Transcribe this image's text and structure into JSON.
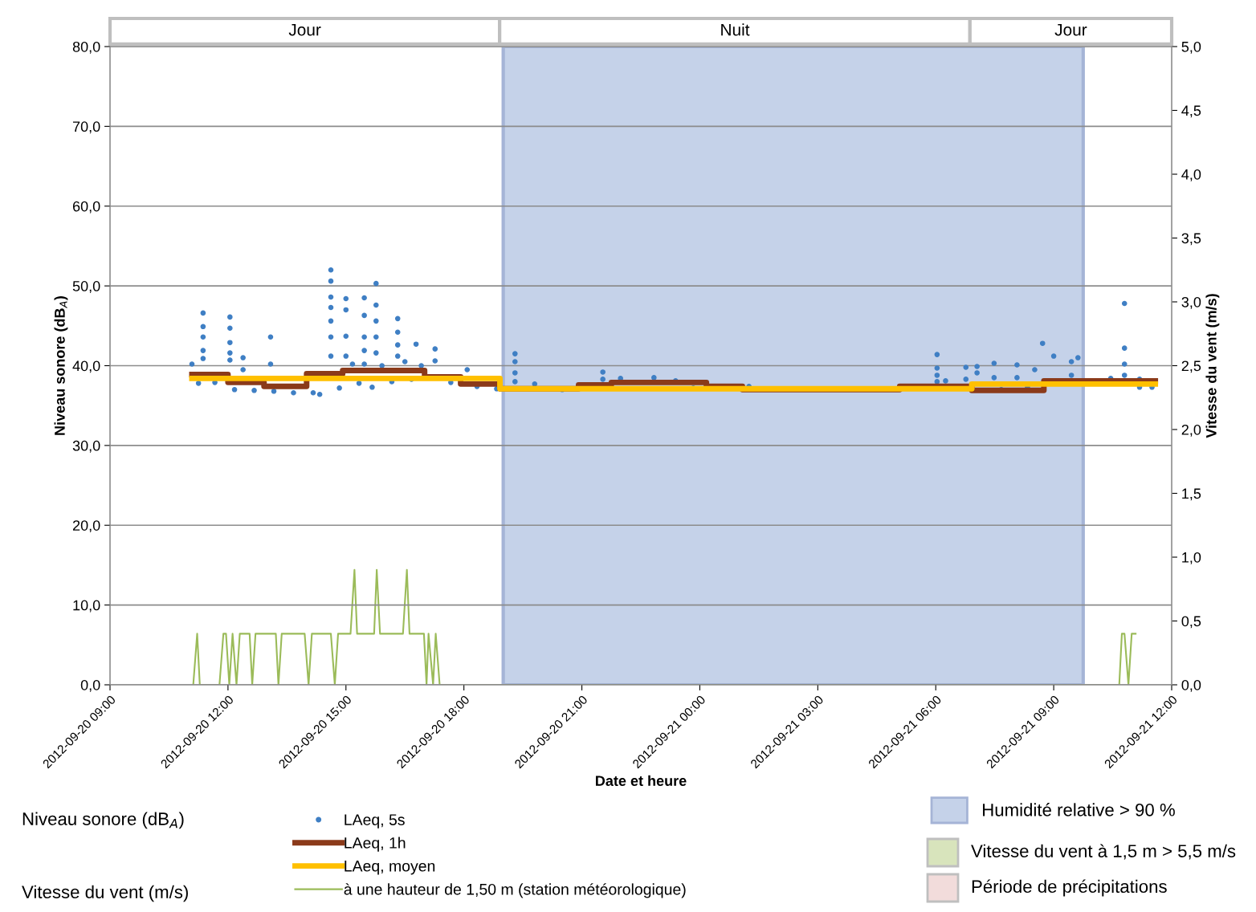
{
  "chart_data": {
    "type": "scatter",
    "xlabel": "Date et heure",
    "ylabel": "Niveau sonore (dB$_{A}$)",
    "y2label": "Vitesse du vent (m/s)",
    "xlim": [
      "2012-09-20T09:00",
      "2012-09-21T12:00"
    ],
    "xticks": [
      {
        "value": "2012-09-20T09:00",
        "label": "2012-09-20 09:00"
      },
      {
        "value": "2012-09-20T12:00",
        "label": "2012-09-20 12:00"
      },
      {
        "value": "2012-09-20T15:00",
        "label": "2012-09-20 15:00"
      },
      {
        "value": "2012-09-20T18:00",
        "label": "2012-09-20 18:00"
      },
      {
        "value": "2012-09-20T21:00",
        "label": "2012-09-20 21:00"
      },
      {
        "value": "2012-09-21T00:00",
        "label": "2012-09-21 00:00"
      },
      {
        "value": "2012-09-21T03:00",
        "label": "2012-09-21 03:00"
      },
      {
        "value": "2012-09-21T06:00",
        "label": "2012-09-21 06:00"
      },
      {
        "value": "2012-09-21T09:00",
        "label": "2012-09-21 09:00"
      },
      {
        "value": "2012-09-21T12:00",
        "label": "2012-09-21 12:00"
      }
    ],
    "ylim": [
      0,
      80
    ],
    "yticks": [
      {
        "value": 0,
        "label": "0,0"
      },
      {
        "value": 10,
        "label": "10,0"
      },
      {
        "value": 20,
        "label": "20,0"
      },
      {
        "value": 30,
        "label": "30,0"
      },
      {
        "value": 40,
        "label": "40,0"
      },
      {
        "value": 50,
        "label": "50,0"
      },
      {
        "value": 60,
        "label": "60,0"
      },
      {
        "value": 70,
        "label": "70,0"
      },
      {
        "value": 80,
        "label": "80,0"
      }
    ],
    "y2lim": [
      0,
      5
    ],
    "y2ticks": [
      {
        "value": 0,
        "label": "0,0"
      },
      {
        "value": 0.5,
        "label": "0,5"
      },
      {
        "value": 1,
        "label": "1,0"
      },
      {
        "value": 1.5,
        "label": "1,5"
      },
      {
        "value": 2,
        "label": "2,0"
      },
      {
        "value": 2.5,
        "label": "2,5"
      },
      {
        "value": 3,
        "label": "3,0"
      },
      {
        "value": 3.5,
        "label": "3,5"
      },
      {
        "value": 4,
        "label": "4,0"
      },
      {
        "value": 4.5,
        "label": "4,5"
      },
      {
        "value": 5,
        "label": "5,0"
      }
    ],
    "grid": "y",
    "legend": "bottom",
    "bands": [
      {
        "axis": "x",
        "from": "2012-09-20T19:00",
        "to": "2012-09-21T09:45",
        "label": "Humidité relative > 90 %",
        "color": "#c5d2e9"
      }
    ],
    "annotations": [
      "Niveau sonore (dB$_{A}$)",
      "Vitesse du vent (m/s)",
      "Jour",
      "Nuit",
      "Jour",
      "Vitesse du vent à 1,5 m > 5,5 m/s",
      "Période de précipitations"
    ],
    "series": [
      {
        "name": "à une hauteur de 1,50 m (station météorologique)",
        "type": "line",
        "axis": "y2",
        "color": "#9bbb59",
        "marker": "none",
        "x": [
          "2012-09-20T11:07",
          "2012-09-20T11:13",
          "2012-09-20T11:17",
          "2012-09-20T11:47",
          "2012-09-20T11:53",
          "2012-09-20T11:57",
          "2012-09-20T12:02",
          "2012-09-20T12:07",
          "2012-09-20T12:13",
          "2012-09-20T12:18",
          "2012-09-20T12:33",
          "2012-09-20T12:37",
          "2012-09-20T12:42",
          "2012-09-20T13:13",
          "2012-09-20T13:17",
          "2012-09-20T13:22",
          "2012-09-20T13:57",
          "2012-09-20T14:03",
          "2012-09-20T14:08",
          "2012-09-20T14:37",
          "2012-09-20T14:43",
          "2012-09-20T14:48",
          "2012-09-20T15:07",
          "2012-09-20T15:13",
          "2012-09-20T15:17",
          "2012-09-20T15:43",
          "2012-09-20T15:47",
          "2012-09-20T15:52",
          "2012-09-20T16:27",
          "2012-09-20T16:33",
          "2012-09-20T16:37",
          "2012-09-20T16:59",
          "2012-09-20T17:03",
          "2012-09-20T17:06",
          "2012-09-20T17:13",
          "2012-09-20T17:17",
          "2012-09-20T17:23",
          "2012-09-21T10:40",
          "2012-09-21T10:44",
          "2012-09-21T10:48",
          "2012-09-21T10:54",
          "2012-09-21T10:59",
          "2012-09-21T11:05"
        ],
        "values": [
          0,
          0.4,
          0,
          0,
          0.4,
          0.4,
          0,
          0.4,
          0,
          0.4,
          0.4,
          0,
          0.4,
          0.4,
          0,
          0.4,
          0.4,
          0,
          0.4,
          0.4,
          0,
          0.4,
          0.4,
          0.9,
          0.4,
          0.4,
          0.9,
          0.4,
          0.4,
          0.9,
          0.4,
          0.4,
          0,
          0.4,
          0,
          0.4,
          0,
          0,
          0.4,
          0.4,
          0,
          0.4,
          0.4
        ]
      },
      {
        "name": "LAeq, 5s",
        "color": "#3f7fc4",
        "marker": "circle",
        "x": [
          "2012-09-20T11:05",
          "2012-09-20T11:15",
          "2012-09-20T11:22",
          "2012-09-20T11:22",
          "2012-09-20T11:22",
          "2012-09-20T11:22",
          "2012-09-20T11:22",
          "2012-09-20T11:40",
          "2012-09-20T12:03",
          "2012-09-20T12:03",
          "2012-09-20T12:03",
          "2012-09-20T12:03",
          "2012-09-20T12:03",
          "2012-09-20T12:10",
          "2012-09-20T12:23",
          "2012-09-20T12:23",
          "2012-09-20T12:40",
          "2012-09-20T13:05",
          "2012-09-20T13:05",
          "2012-09-20T13:10",
          "2012-09-20T13:40",
          "2012-09-20T14:10",
          "2012-09-20T14:20",
          "2012-09-20T14:37",
          "2012-09-20T14:37",
          "2012-09-20T14:37",
          "2012-09-20T14:37",
          "2012-09-20T14:37",
          "2012-09-20T14:37",
          "2012-09-20T14:37",
          "2012-09-20T14:50",
          "2012-09-20T15:00",
          "2012-09-20T15:00",
          "2012-09-20T15:00",
          "2012-09-20T15:00",
          "2012-09-20T15:10",
          "2012-09-20T15:20",
          "2012-09-20T15:28",
          "2012-09-20T15:28",
          "2012-09-20T15:28",
          "2012-09-20T15:28",
          "2012-09-20T15:28",
          "2012-09-20T15:40",
          "2012-09-20T15:46",
          "2012-09-20T15:46",
          "2012-09-20T15:46",
          "2012-09-20T15:46",
          "2012-09-20T15:46",
          "2012-09-20T15:55",
          "2012-09-20T16:10",
          "2012-09-20T16:19",
          "2012-09-20T16:19",
          "2012-09-20T16:19",
          "2012-09-20T16:19",
          "2012-09-20T16:30",
          "2012-09-20T16:40",
          "2012-09-20T16:47",
          "2012-09-20T16:55",
          "2012-09-20T17:16",
          "2012-09-20T17:16",
          "2012-09-20T17:40",
          "2012-09-20T18:05",
          "2012-09-20T18:20",
          "2012-09-20T18:50",
          "2012-09-20T19:18",
          "2012-09-20T19:18",
          "2012-09-20T19:18",
          "2012-09-20T19:18",
          "2012-09-20T19:48",
          "2012-09-20T20:30",
          "2012-09-20T21:32",
          "2012-09-20T21:32",
          "2012-09-20T21:59",
          "2012-09-20T22:50",
          "2012-09-20T23:23",
          "2012-09-20T23:50",
          "2012-09-21T01:15",
          "2012-09-21T06:02",
          "2012-09-21T06:02",
          "2012-09-21T06:02",
          "2012-09-21T06:02",
          "2012-09-21T06:15",
          "2012-09-21T06:46",
          "2012-09-21T06:46",
          "2012-09-21T07:03",
          "2012-09-21T07:03",
          "2012-09-21T07:29",
          "2012-09-21T07:29",
          "2012-09-21T07:40",
          "2012-09-21T08:04",
          "2012-09-21T08:04",
          "2012-09-21T08:20",
          "2012-09-21T08:31",
          "2012-09-21T08:43",
          "2012-09-21T09:00",
          "2012-09-21T09:27",
          "2012-09-21T09:27",
          "2012-09-21T09:37",
          "2012-09-21T10:27",
          "2012-09-21T10:48",
          "2012-09-21T10:48",
          "2012-09-21T10:48",
          "2012-09-21T10:48",
          "2012-09-21T11:11",
          "2012-09-21T11:11",
          "2012-09-21T11:30"
        ],
        "values": [
          40.2,
          37.8,
          46.6,
          44.9,
          43.6,
          41.9,
          40.9,
          37.9,
          46.1,
          44.7,
          42.9,
          41.6,
          40.7,
          37.0,
          41.0,
          39.5,
          36.9,
          43.6,
          40.2,
          36.8,
          36.6,
          36.6,
          36.4,
          52.0,
          50.6,
          48.6,
          47.3,
          45.6,
          43.6,
          41.2,
          37.2,
          48.4,
          47.0,
          43.7,
          41.2,
          40.2,
          37.8,
          48.5,
          46.3,
          43.6,
          41.9,
          40.2,
          37.3,
          50.3,
          47.6,
          45.6,
          43.6,
          41.6,
          40.0,
          38.0,
          45.9,
          44.2,
          42.6,
          41.2,
          40.5,
          38.3,
          42.7,
          40.0,
          42.1,
          40.6,
          37.9,
          39.5,
          37.4,
          37.1,
          41.5,
          40.5,
          39.1,
          38.0,
          37.7,
          37.0,
          39.2,
          38.3,
          38.4,
          38.5,
          38.1,
          37.2,
          37.4,
          41.4,
          39.7,
          38.8,
          38.0,
          38.1,
          39.8,
          38.3,
          39.9,
          39.1,
          40.3,
          38.5,
          37.0,
          40.1,
          38.5,
          37.3,
          39.5,
          42.8,
          41.2,
          40.5,
          38.8,
          41.0,
          38.4,
          47.8,
          42.2,
          40.2,
          38.8,
          38.3,
          37.3,
          37.3
        ]
      },
      {
        "name": "LAeq, 1h",
        "type": "step",
        "color": "#8b3a1a",
        "x": [
          "2012-09-20T11:05",
          "2012-09-20T12:00",
          "2012-09-20T12:55",
          "2012-09-20T14:00",
          "2012-09-20T14:55",
          "2012-09-20T17:00",
          "2012-09-20T17:55",
          "2012-09-20T18:55",
          "2012-09-20T20:55",
          "2012-09-20T21:45",
          "2012-09-21T00:10",
          "2012-09-21T01:05",
          "2012-09-21T05:05",
          "2012-09-21T06:55",
          "2012-09-21T08:45",
          "2012-09-21T11:35"
        ],
        "values": [
          38.9,
          37.9,
          37.4,
          39.0,
          39.4,
          38.6,
          37.7,
          37.1,
          37.6,
          37.9,
          37.4,
          37.0,
          37.4,
          36.9,
          38.1,
          38.1
        ]
      },
      {
        "name": "LAeq, moyen",
        "type": "step",
        "color": "#ffc000",
        "x": [
          "2012-09-20T11:05",
          "2012-09-20T18:55",
          "2012-09-21T06:55",
          "2012-09-21T11:35"
        ],
        "values": [
          38.4,
          37.1,
          37.7,
          37.7
        ]
      }
    ]
  }
}
